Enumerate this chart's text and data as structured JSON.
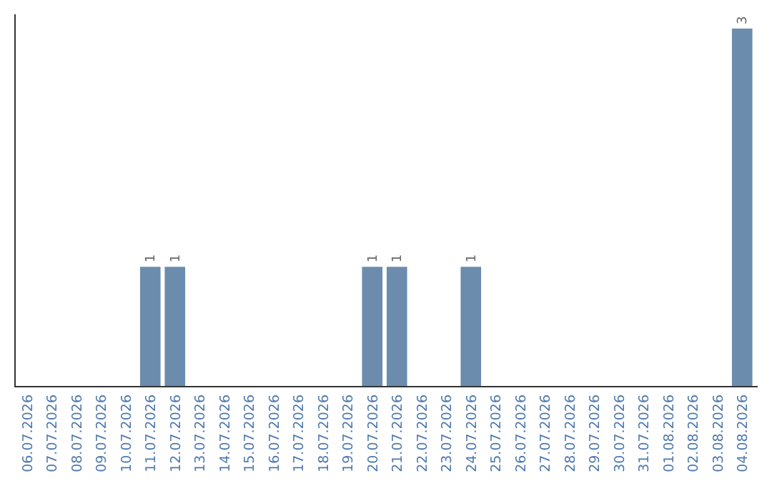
{
  "chart_data": {
    "type": "bar",
    "categories": [
      "06.07.2026",
      "07.07.2026",
      "08.07.2026",
      "09.07.2026",
      "10.07.2026",
      "11.07.2026",
      "12.07.2026",
      "13.07.2026",
      "14.07.2026",
      "15.07.2026",
      "16.07.2026",
      "17.07.2026",
      "18.07.2026",
      "19.07.2026",
      "20.07.2026",
      "21.07.2026",
      "22.07.2026",
      "23.07.2026",
      "24.07.2026",
      "25.07.2026",
      "26.07.2026",
      "27.07.2026",
      "28.07.2026",
      "29.07.2026",
      "30.07.2026",
      "31.07.2026",
      "01.08.2026",
      "02.08.2026",
      "03.08.2026",
      "04.08.2026"
    ],
    "values": [
      0,
      0,
      0,
      0,
      0,
      1,
      1,
      0,
      0,
      0,
      0,
      0,
      0,
      0,
      1,
      1,
      0,
      0,
      1,
      0,
      0,
      0,
      0,
      0,
      0,
      0,
      0,
      0,
      0,
      3
    ],
    "value_labels": [
      null,
      null,
      null,
      null,
      null,
      "1",
      "1",
      null,
      null,
      null,
      null,
      null,
      null,
      null,
      "1",
      "1",
      null,
      null,
      "1",
      null,
      null,
      null,
      null,
      null,
      null,
      null,
      null,
      null,
      null,
      "3"
    ],
    "color": "#6b8cad"
  }
}
